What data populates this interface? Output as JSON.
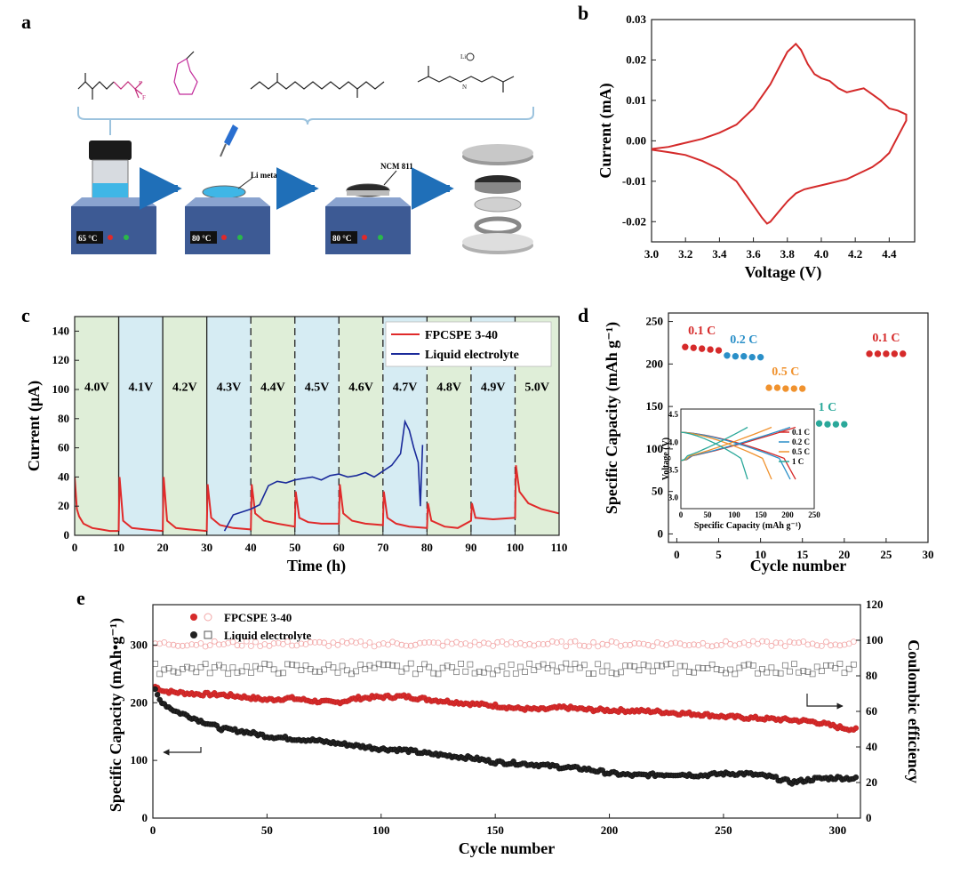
{
  "panels": {
    "a": {
      "letter": "a",
      "labels": {
        "li_metal": "Li metal",
        "ncm": "NCM 811"
      },
      "temps": [
        "65 °C",
        "80 °C",
        "80 °C"
      ],
      "colors": {
        "arrow": "#1f6fb8",
        "hotplate_top": "#6b86b8",
        "hotplate_body": "#3d5a94",
        "liquid": "#3fb6e6",
        "cathode": "#2a2a2a"
      },
      "icons": [
        "vial-icon",
        "pipette-icon",
        "hotplate-icon",
        "arrow-right-icon",
        "coin-cell-exploded-icon"
      ]
    },
    "b": {
      "letter": "b",
      "chart_data": {
        "type": "line",
        "xlabel": "Voltage (V)",
        "ylabel": "Current (mA)",
        "xlim": [
          3.0,
          4.55
        ],
        "ylim": [
          -0.025,
          0.03
        ],
        "xticks": [
          "3.0",
          "3.2",
          "3.4",
          "3.6",
          "3.8",
          "4.0",
          "4.2",
          "4.4"
        ],
        "yticks": [
          "0.03",
          "0.02",
          "0.01",
          "0.00",
          "-0.01",
          "-0.02"
        ],
        "series": [
          {
            "color": "#d42a2a",
            "x": [
              3.0,
              3.1,
              3.2,
              3.3,
              3.4,
              3.5,
              3.6,
              3.7,
              3.75,
              3.8,
              3.85,
              3.88,
              3.92,
              3.96,
              4.0,
              4.05,
              4.1,
              4.15,
              4.2,
              4.25,
              4.3,
              4.35,
              4.4,
              4.45,
              4.5,
              4.5,
              4.45,
              4.4,
              4.35,
              4.3,
              4.25,
              4.2,
              4.15,
              4.1,
              4.05,
              4.0,
              3.95,
              3.9,
              3.85,
              3.8,
              3.75,
              3.7,
              3.68,
              3.65,
              3.6,
              3.55,
              3.5,
              3.4,
              3.3,
              3.2,
              3.1,
              3.0
            ],
            "y": [
              -0.002,
              -0.0015,
              -0.0005,
              0.0005,
              0.002,
              0.004,
              0.008,
              0.014,
              0.018,
              0.022,
              0.024,
              0.0225,
              0.019,
              0.0165,
              0.0155,
              0.0148,
              0.013,
              0.012,
              0.0125,
              0.013,
              0.0115,
              0.01,
              0.008,
              0.0075,
              0.0065,
              0.005,
              0.001,
              -0.003,
              -0.005,
              -0.0065,
              -0.0075,
              -0.0085,
              -0.0095,
              -0.01,
              -0.0105,
              -0.011,
              -0.0115,
              -0.012,
              -0.013,
              -0.015,
              -0.0175,
              -0.02,
              -0.0205,
              -0.019,
              -0.016,
              -0.013,
              -0.01,
              -0.007,
              -0.005,
              -0.0035,
              -0.0028,
              -0.0022
            ]
          }
        ]
      }
    },
    "c": {
      "letter": "c",
      "chart_data": {
        "type": "line",
        "xlabel": "Time (h)",
        "ylabel": "Current (μA)",
        "xlim": [
          0,
          110
        ],
        "ylim": [
          0,
          150
        ],
        "xticks": [
          "0",
          "10",
          "20",
          "30",
          "40",
          "50",
          "60",
          "70",
          "80",
          "90",
          "100",
          "110"
        ],
        "yticks": [
          "0",
          "20",
          "40",
          "60",
          "80",
          "100",
          "120",
          "140"
        ],
        "voltage_labels": [
          "4.0V",
          "4.1V",
          "4.2V",
          "4.3V",
          "4.4V",
          "4.5V",
          "4.6V",
          "4.7V",
          "4.8V",
          "4.9V",
          "5.0V"
        ],
        "band_colors": [
          "#dfeed8",
          "#d6ecf3"
        ],
        "series": [
          {
            "name": "FPCSPE 3-40",
            "color": "#e02a2a",
            "x": [
              0,
              0.5,
              1,
              2,
              4,
              6,
              8,
              10,
              10.2,
              11,
              13,
              16,
              20,
              20.2,
              21,
              23,
              26,
              30,
              30.2,
              31,
              33,
              36,
              40,
              40.2,
              41,
              43,
              46,
              50,
              50.2,
              51,
              53,
              56,
              60,
              60.2,
              61,
              63,
              66,
              70,
              70.2,
              71,
              73,
              76,
              80,
              80.2,
              81,
              84,
              87,
              90,
              90.2,
              91,
              95,
              100,
              100.2,
              101,
              103,
              106,
              110
            ],
            "y": [
              40,
              18,
              13,
              8,
              5,
              4,
              3,
              3,
              40,
              10,
              5,
              4,
              3,
              40,
              10,
              5,
              4,
              3,
              35,
              12,
              7,
              5,
              4,
              35,
              15,
              10,
              8,
              6,
              30,
              12,
              9,
              8,
              8,
              35,
              15,
              10,
              8,
              7,
              30,
              12,
              8,
              6,
              5,
              22,
              10,
              6,
              5,
              10,
              22,
              12,
              11,
              12,
              48,
              30,
              22,
              18,
              15
            ]
          },
          {
            "name": "Liquid electrolyte",
            "color": "#1a2a9a",
            "x": [
              34,
              36,
              38,
              40,
              42,
              44,
              46,
              48,
              50,
              52,
              54,
              56,
              58,
              60,
              62,
              64,
              66,
              68,
              70,
              72,
              74,
              75,
              76,
              77,
              78,
              78.5,
              79
            ],
            "y": [
              3,
              14,
              16,
              18,
              21,
              34,
              37,
              36,
              38,
              39,
              40,
              38,
              41,
              42,
              40,
              41,
              43,
              40,
              44,
              48,
              56,
              78,
              72,
              60,
              50,
              20,
              62
            ]
          }
        ]
      }
    },
    "d": {
      "letter": "d",
      "chart_data": {
        "type": "scatter",
        "xlabel": "Cycle number",
        "ylabel": "Specific Capacity (mAh g⁻¹)",
        "xlim": [
          -1,
          30
        ],
        "ylim": [
          -10,
          260
        ],
        "xticks": [
          "0",
          "5",
          "10",
          "15",
          "20",
          "25",
          "30"
        ],
        "yticks": [
          "0",
          "50",
          "100",
          "150",
          "200",
          "250"
        ],
        "series": [
          {
            "name": "0.1 C",
            "color": "#d62a2a",
            "x": [
              1,
              2,
              3,
              4,
              5
            ],
            "y": [
              220,
              219,
              218,
              217,
              216
            ]
          },
          {
            "name": "0.2 C",
            "color": "#2a8fc8",
            "x": [
              6,
              7,
              8,
              9,
              10
            ],
            "y": [
              210,
              209,
              209,
              208,
              208
            ]
          },
          {
            "name": "0.5 C",
            "color": "#f0922e",
            "x": [
              11,
              12,
              13,
              14,
              15
            ],
            "y": [
              172,
              172,
              171,
              171,
              171
            ]
          },
          {
            "name": "1 C",
            "color": "#2aa89a",
            "x": [
              16,
              17,
              18,
              19,
              20
            ],
            "y": [
              130,
              130,
              129,
              129,
              129
            ]
          },
          {
            "name": "0.1 C",
            "color": "#d62a2a",
            "x": [
              23,
              24,
              25,
              26,
              27
            ],
            "y": [
              212,
              212,
              212,
              212,
              212
            ]
          }
        ],
        "rate_labels": [
          "0.1 C",
          "0.2 C",
          "0.5 C",
          "1 C",
          "0.1 C"
        ],
        "inset": {
          "xlabel": "Specific Capacity (mAh g⁻¹)",
          "ylabel": "Voltage (V)",
          "xticks": [
            "0",
            "50",
            "100",
            "150",
            "200",
            "250"
          ],
          "yticks": [
            "3.0",
            "3.5",
            "4.0",
            "4.5"
          ],
          "legend": [
            "0.1 C",
            "0.2 C",
            "0.5 C",
            "1 C"
          ],
          "colors": [
            "#d62a2a",
            "#2a8fc8",
            "#f0922e",
            "#2aa89a"
          ],
          "capacities": [
            215,
            205,
            170,
            125
          ]
        }
      }
    },
    "e": {
      "letter": "e",
      "chart_data": {
        "type": "scatter",
        "xlabel": "Cycle number",
        "ylabel": "Specific Capacity (mAh•g⁻¹)",
        "y2label": "Coulombic efficiency",
        "xlim": [
          0,
          310
        ],
        "ylim": [
          0,
          370
        ],
        "y2lim": [
          0,
          120
        ],
        "xticks": [
          "0",
          "50",
          "100",
          "150",
          "200",
          "250",
          "300"
        ],
        "yticks": [
          "0",
          "100",
          "200",
          "300"
        ],
        "y2ticks": [
          "0",
          "20",
          "40",
          "60",
          "80",
          "100",
          "120"
        ],
        "series": [
          {
            "name": "FPCSPE 3-40",
            "color": "#d62a2a",
            "x": [
              0,
              5,
              10,
              20,
              30,
              40,
              50,
              60,
              70,
              80,
              90,
              100,
              110,
              120,
              130,
              140,
              150,
              160,
              170,
              180,
              190,
              200,
              210,
              220,
              230,
              240,
              250,
              260,
              270,
              280,
              290,
              300,
              310
            ],
            "y": [
              230,
              220,
              218,
              215,
              214,
              210,
              205,
              208,
              203,
              200,
              208,
              210,
              211,
              206,
              202,
              198,
              195,
              190,
              188,
              192,
              188,
              187,
              186,
              185,
              182,
              180,
              176,
              174,
              172,
              170,
              167,
              158,
              152
            ]
          },
          {
            "name": "Liquid electrolyte",
            "color": "#222222",
            "x": [
              0,
              3,
              6,
              10,
              15,
              20,
              25,
              30,
              40,
              50,
              60,
              70,
              80,
              90,
              100,
              110,
              120,
              130,
              140,
              150,
              160,
              170,
              180,
              190,
              200,
              210,
              220,
              230,
              240,
              250,
              260,
              270,
              280,
              290,
              300,
              310
            ],
            "y": [
              230,
              205,
              195,
              185,
              178,
              170,
              163,
              155,
              150,
              142,
              138,
              135,
              130,
              125,
              120,
              118,
              112,
              108,
              104,
              97,
              95,
              92,
              88,
              85,
              78,
              74,
              75,
              76,
              74,
              77,
              77,
              72,
              62,
              68,
              70,
              68
            ]
          }
        ],
        "ce_series": [
          {
            "name": "FPCSPE 3-40 CE",
            "color": "#f2a7a7",
            "value": 98
          },
          {
            "name": "Liquid electrolyte CE",
            "color": "#6a6a6a",
            "value": 84
          }
        ]
      }
    }
  }
}
